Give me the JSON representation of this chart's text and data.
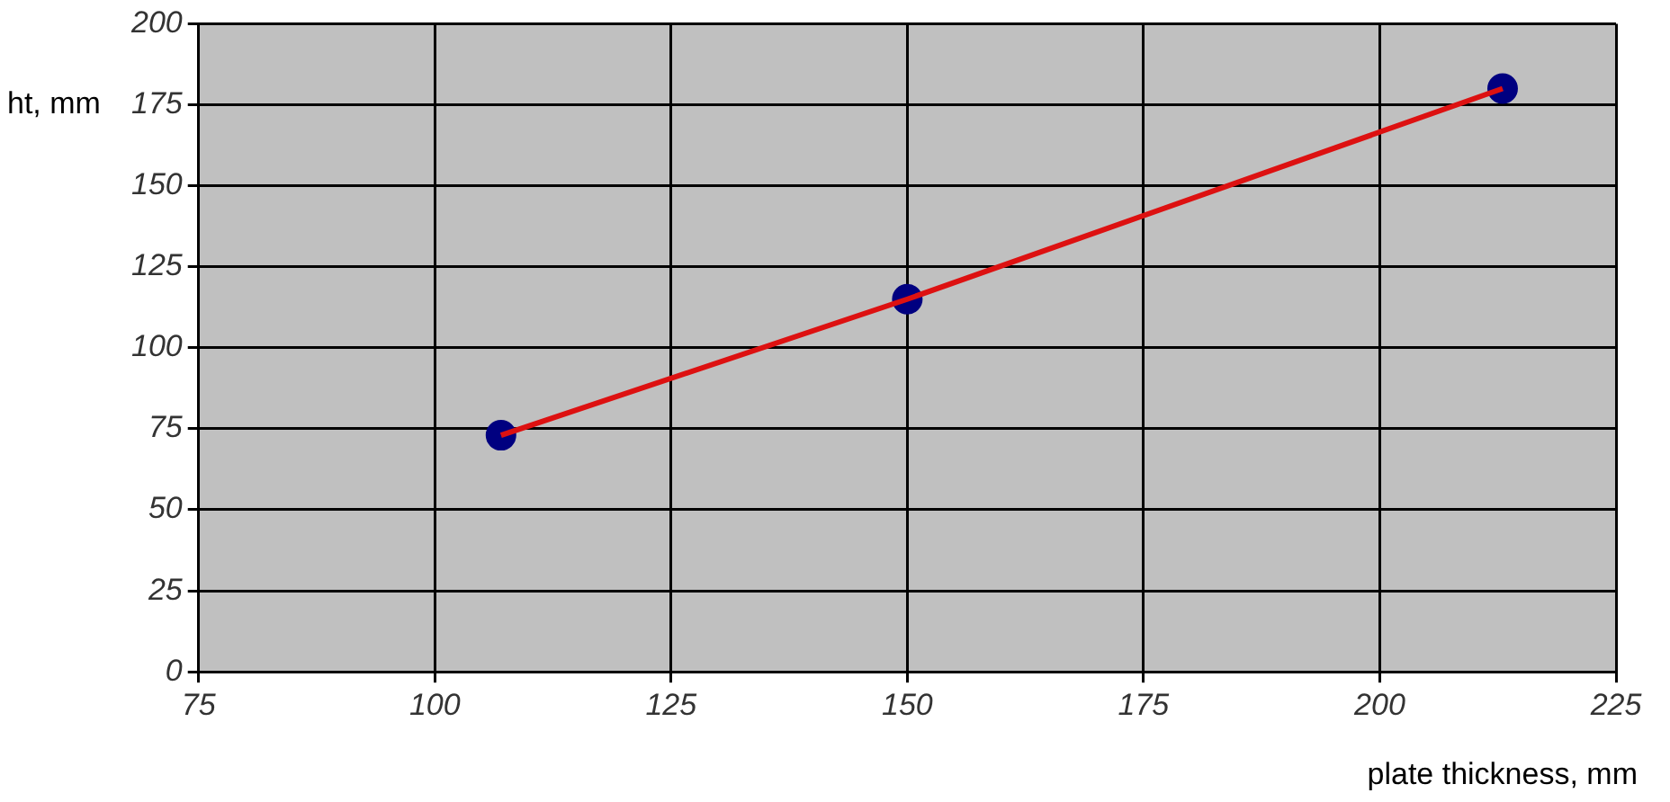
{
  "chart_data": {
    "type": "scatter",
    "xlabel": "plate thickness, mm",
    "ylabel": "ht, mm",
    "x": [
      107,
      150,
      213
    ],
    "series": [
      {
        "type": "line",
        "color": "#dd1111",
        "values": [
          73,
          115,
          180
        ],
        "marker": "none"
      },
      {
        "type": "scatter",
        "color": "#000080",
        "values": [
          73,
          115,
          180
        ],
        "marker": "circle"
      }
    ],
    "xlim": [
      75,
      225
    ],
    "xticks": [
      75,
      100,
      125,
      150,
      175,
      200,
      225
    ],
    "ylim": [
      0,
      200
    ],
    "yticks": [
      0,
      25,
      50,
      75,
      100,
      125,
      150,
      175,
      200
    ],
    "grid": true,
    "legend": false
  }
}
